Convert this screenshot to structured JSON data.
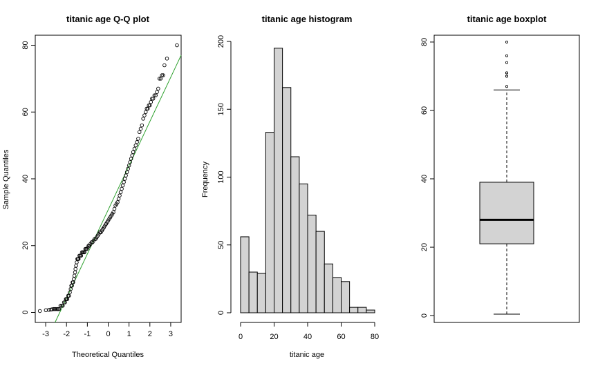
{
  "chart_data": [
    {
      "type": "scatter",
      "title": "titanic age Q-Q plot",
      "xlabel": "Theoretical Quantiles",
      "ylabel": "Sample Quantiles",
      "xlim": [
        -3.5,
        3.5
      ],
      "ylim": [
        -3,
        83
      ],
      "xticks": [
        -3,
        -2,
        -1,
        0,
        1,
        2,
        3
      ],
      "yticks": [
        0,
        20,
        40,
        60,
        80
      ],
      "points_color": "#000000",
      "reference_line": {
        "color": "#2ca02c",
        "x": [
          -2.55,
          3.5
        ],
        "y": [
          -3,
          77
        ]
      },
      "points": [
        [
          -3.28,
          0.42
        ],
        [
          -2.99,
          0.67
        ],
        [
          -2.85,
          0.75
        ],
        [
          -2.76,
          0.83
        ],
        [
          -2.69,
          0.92
        ],
        [
          -2.62,
          1
        ],
        [
          -2.57,
          1
        ],
        [
          -2.52,
          1
        ],
        [
          -2.45,
          1
        ],
        [
          -2.41,
          1
        ],
        [
          -2.36,
          1
        ],
        [
          -2.29,
          2
        ],
        [
          -2.23,
          2
        ],
        [
          -2.18,
          2
        ],
        [
          -2.12,
          3
        ],
        [
          -2.07,
          3
        ],
        [
          -2.03,
          4
        ],
        [
          -2.0,
          4
        ],
        [
          -1.96,
          4
        ],
        [
          -1.92,
          5
        ],
        [
          -1.88,
          5
        ],
        [
          -1.84,
          6
        ],
        [
          -1.8,
          7
        ],
        [
          -1.77,
          8
        ],
        [
          -1.74,
          8
        ],
        [
          -1.71,
          9
        ],
        [
          -1.68,
          9
        ],
        [
          -1.65,
          10
        ],
        [
          -1.62,
          11
        ],
        [
          -1.59,
          12
        ],
        [
          -1.57,
          13
        ],
        [
          -1.54,
          14
        ],
        [
          -1.51,
          15
        ],
        [
          -1.48,
          16
        ],
        [
          -1.45,
          16
        ],
        [
          -1.42,
          16
        ],
        [
          -1.38,
          17
        ],
        [
          -1.34,
          17
        ],
        [
          -1.3,
          17
        ],
        [
          -1.26,
          18
        ],
        [
          -1.22,
          18
        ],
        [
          -1.18,
          18
        ],
        [
          -1.14,
          18
        ],
        [
          -1.1,
          19
        ],
        [
          -1.06,
          19
        ],
        [
          -1.02,
          19
        ],
        [
          -0.98,
          19.5
        ],
        [
          -0.94,
          20
        ],
        [
          -0.9,
          20
        ],
        [
          -0.85,
          20.5
        ],
        [
          -0.8,
          21
        ],
        [
          -0.75,
          21
        ],
        [
          -0.7,
          21.5
        ],
        [
          -0.65,
          22
        ],
        [
          -0.6,
          22
        ],
        [
          -0.55,
          22.5
        ],
        [
          -0.5,
          23
        ],
        [
          -0.45,
          23.5
        ],
        [
          -0.4,
          24
        ],
        [
          -0.35,
          24
        ],
        [
          -0.3,
          24.5
        ],
        [
          -0.25,
          25
        ],
        [
          -0.2,
          25.5
        ],
        [
          -0.15,
          26
        ],
        [
          -0.1,
          26.5
        ],
        [
          -0.05,
          27
        ],
        [
          0.0,
          27.5
        ],
        [
          0.05,
          28
        ],
        [
          0.1,
          28.5
        ],
        [
          0.15,
          29
        ],
        [
          0.2,
          29.5
        ],
        [
          0.25,
          30
        ],
        [
          0.3,
          31
        ],
        [
          0.35,
          32
        ],
        [
          0.4,
          32.5
        ],
        [
          0.45,
          33
        ],
        [
          0.5,
          34
        ],
        [
          0.55,
          35
        ],
        [
          0.6,
          36
        ],
        [
          0.65,
          37
        ],
        [
          0.7,
          38
        ],
        [
          0.75,
          39
        ],
        [
          0.8,
          40
        ],
        [
          0.85,
          41
        ],
        [
          0.9,
          42
        ],
        [
          0.95,
          43
        ],
        [
          1.0,
          44
        ],
        [
          1.05,
          45
        ],
        [
          1.1,
          46
        ],
        [
          1.15,
          47
        ],
        [
          1.2,
          48
        ],
        [
          1.26,
          49
        ],
        [
          1.32,
          50
        ],
        [
          1.38,
          51
        ],
        [
          1.44,
          52
        ],
        [
          1.5,
          54
        ],
        [
          1.56,
          55
        ],
        [
          1.62,
          56
        ],
        [
          1.68,
          58
        ],
        [
          1.74,
          59
        ],
        [
          1.8,
          60
        ],
        [
          1.85,
          61
        ],
        [
          1.9,
          61
        ],
        [
          1.95,
          62
        ],
        [
          2.0,
          62
        ],
        [
          2.05,
          63
        ],
        [
          2.1,
          64
        ],
        [
          2.16,
          64
        ],
        [
          2.22,
          65
        ],
        [
          2.28,
          65
        ],
        [
          2.34,
          66
        ],
        [
          2.4,
          67
        ],
        [
          2.46,
          70
        ],
        [
          2.52,
          70
        ],
        [
          2.58,
          71
        ],
        [
          2.64,
          71
        ],
        [
          2.7,
          74
        ],
        [
          2.82,
          76
        ],
        [
          3.3,
          80
        ]
      ]
    },
    {
      "type": "bar",
      "title": "titanic age histogram",
      "xlabel": "titanic age",
      "ylabel": "Frequency",
      "xlim": [
        -2,
        82
      ],
      "ylim": [
        0,
        200
      ],
      "xticks": [
        0,
        20,
        40,
        60,
        80
      ],
      "yticks": [
        0,
        50,
        100,
        150,
        200
      ],
      "bin_edges": [
        0,
        5,
        10,
        15,
        20,
        25,
        30,
        35,
        40,
        45,
        50,
        55,
        60,
        65,
        70,
        75,
        80
      ],
      "values": [
        56,
        30,
        29,
        133,
        195,
        166,
        115,
        95,
        72,
        60,
        36,
        26,
        23,
        4,
        4,
        2
      ],
      "bar_fill": "#d3d3d3"
    },
    {
      "type": "boxplot",
      "title": "titanic age boxplot",
      "ylim": [
        -2,
        82
      ],
      "yticks": [
        0,
        20,
        40,
        60,
        80
      ],
      "min": 0.42,
      "q1": 21,
      "median": 28,
      "q3": 39,
      "max": 66,
      "outliers": [
        67,
        70,
        70,
        71,
        71,
        74,
        76,
        80
      ],
      "box_fill": "#d3d3d3"
    }
  ]
}
